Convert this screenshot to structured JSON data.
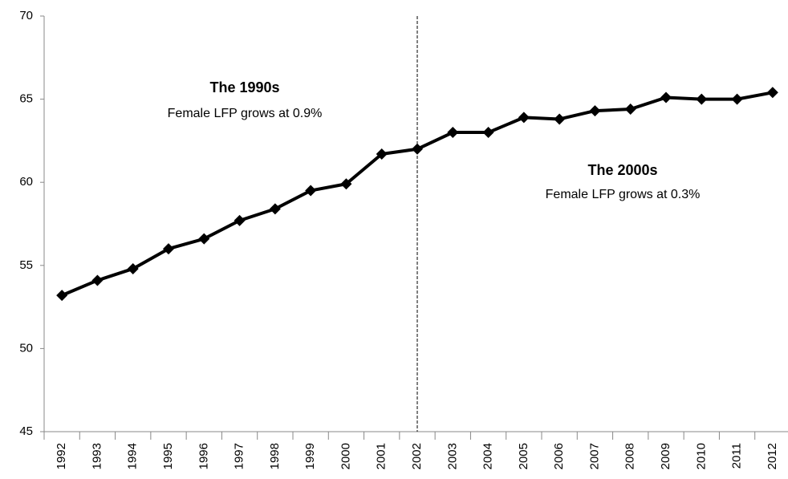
{
  "chart_data": {
    "type": "line",
    "categories": [
      "1992",
      "1993",
      "1994",
      "1995",
      "1996",
      "1997",
      "1998",
      "1999",
      "2000",
      "2001",
      "2002",
      "2003",
      "2004",
      "2005",
      "2006",
      "2007",
      "2008",
      "2009",
      "2010",
      "2011",
      "2012"
    ],
    "series": [
      {
        "name": "Female LFP",
        "color": "#000000",
        "values": [
          53.2,
          54.1,
          54.8,
          56.0,
          56.6,
          57.7,
          58.4,
          59.5,
          59.9,
          61.7,
          62.0,
          63.0,
          63.0,
          63.9,
          63.8,
          64.3,
          64.4,
          65.1,
          65.0,
          65.0,
          65.4
        ]
      }
    ],
    "ylim": [
      45,
      70
    ],
    "yticks": [
      45,
      50,
      55,
      60,
      65,
      70
    ],
    "grid": false,
    "legend": false,
    "reference_line": {
      "category": "2002",
      "style": "dashed"
    },
    "annotations": [
      {
        "title": "The 1990s",
        "text": "Female LFP grows at 0.9%"
      },
      {
        "title": "The 2000s",
        "text": "Female LFP grows at 0.3%"
      }
    ]
  }
}
